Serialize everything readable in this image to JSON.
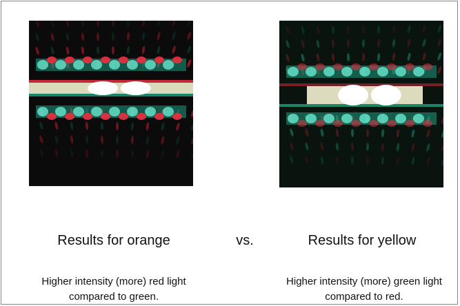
{
  "left": {
    "title": "Results for orange",
    "description": "Higher intensity (more) red light compared to green."
  },
  "separator": "vs.",
  "right": {
    "title": "Results for yellow",
    "description": "Higher intensity (more) green light compared to red."
  }
}
